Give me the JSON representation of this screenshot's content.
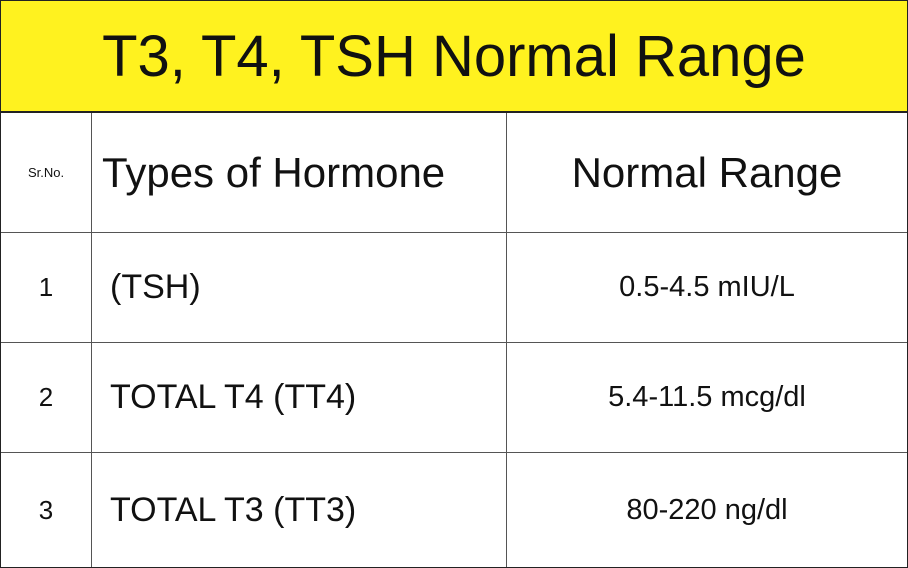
{
  "header": {
    "title": "T3, T4, TSH Normal Range"
  },
  "table": {
    "columns": [
      "Sr.No.",
      "Types of Hormone",
      "Normal Range"
    ],
    "rows": [
      [
        1,
        "(TSH)",
        "0.5-4.5 mIU/L"
      ],
      [
        2,
        "TOTAL T4 (TT4)",
        "5.4-11.5 mcg/dl"
      ],
      [
        3,
        "TOTAL T3 (TT3)",
        "80-220 ng/dl"
      ]
    ]
  }
}
